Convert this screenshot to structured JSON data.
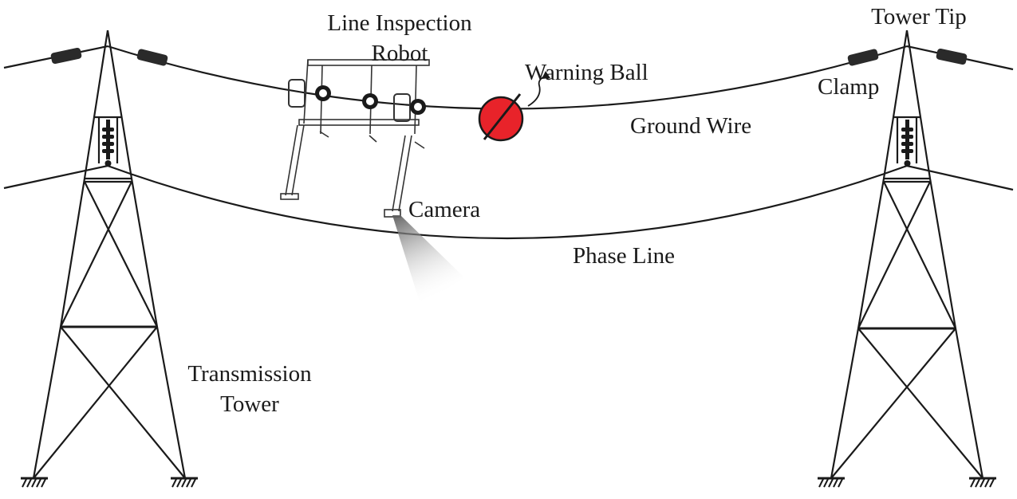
{
  "labels": {
    "robot_line1": "Line Inspection",
    "robot_line2": "Robot",
    "tower_tip": "Tower Tip",
    "warning_ball": "Warning Ball",
    "clamp": "Clamp",
    "ground_wire": "Ground Wire",
    "camera": "Camera",
    "phase_line": "Phase Line",
    "tower_line1": "Transmission",
    "tower_line2": "Tower"
  },
  "colors": {
    "line": "#1a1a1a",
    "warning_ball": "#e8232a",
    "clamp": "#2a2a2a",
    "camera_cone": "#8c8c8c"
  },
  "icons": {
    "warning_ball": "red-ball-with-slash",
    "ground": "ground-hatch"
  }
}
